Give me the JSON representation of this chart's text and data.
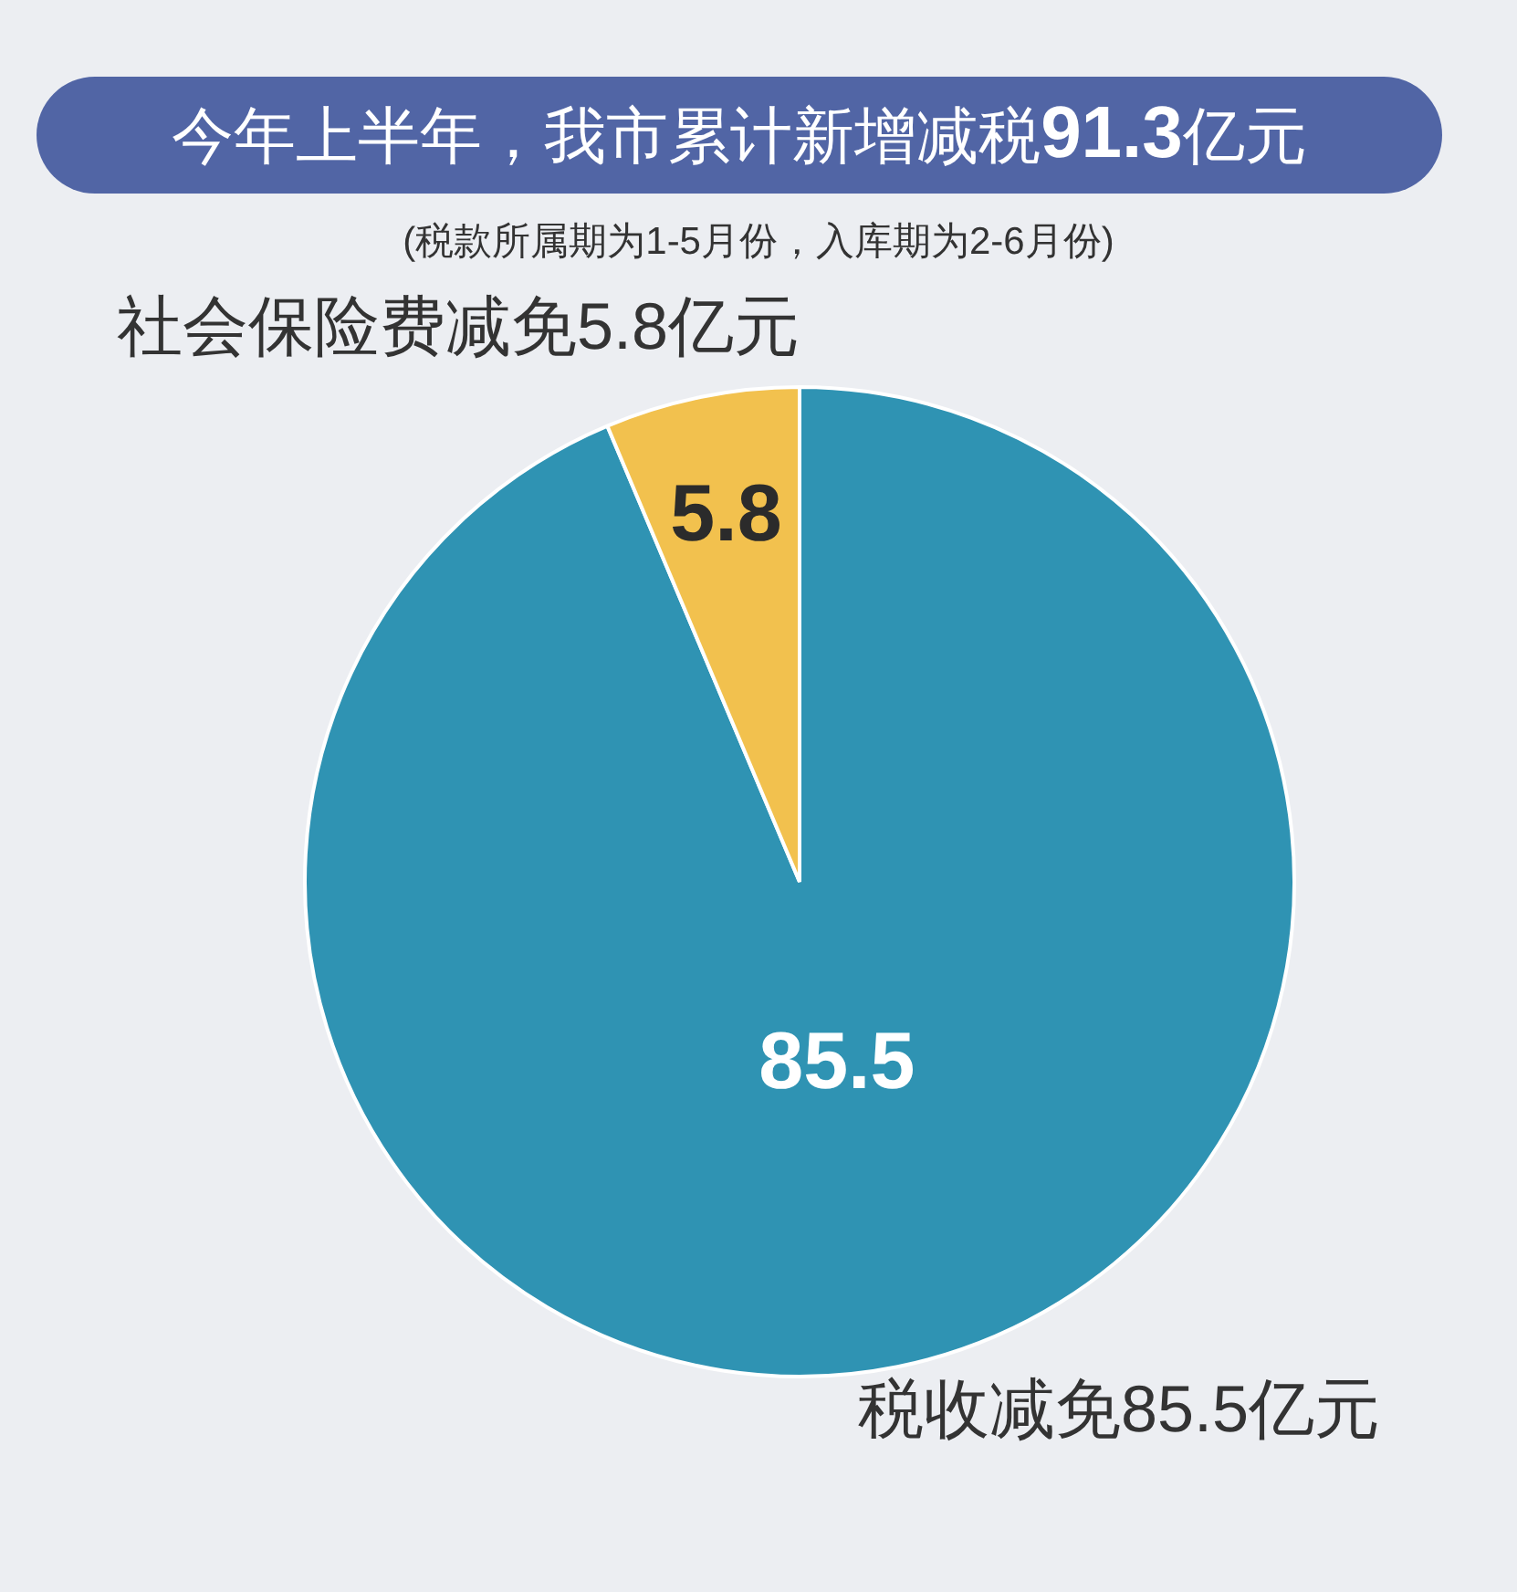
{
  "chart_data": {
    "type": "pie",
    "title": "今年上半年，我市累计新增减税91.3亿元",
    "subtitle": "(税款所属期为1-5月份，入库期为2-6月份)",
    "categories": [
      "税收减免85.5亿元",
      "社会保险费减免5.8亿元"
    ],
    "values": [
      85.5,
      5.8
    ],
    "colors": [
      "#2f93b3",
      "#f2c14e"
    ],
    "data_labels": true
  }
}
